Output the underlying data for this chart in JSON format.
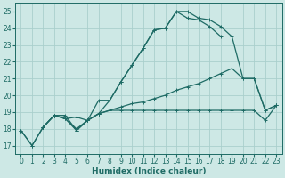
{
  "xlabel": "Humidex (Indice chaleur)",
  "xlim": [
    -0.5,
    23.5
  ],
  "ylim": [
    16.5,
    25.5
  ],
  "xticks": [
    0,
    1,
    2,
    3,
    4,
    5,
    6,
    7,
    8,
    9,
    10,
    11,
    12,
    13,
    14,
    15,
    16,
    17,
    18,
    19,
    20,
    21,
    22,
    23
  ],
  "yticks": [
    17,
    18,
    19,
    20,
    21,
    22,
    23,
    24,
    25
  ],
  "bg_color": "#cde8e5",
  "grid_color": "#aacfcc",
  "line_color": "#1e6b65",
  "line1_x": [
    0,
    1,
    2,
    3,
    4,
    5,
    6,
    7,
    8,
    9,
    10,
    11,
    12,
    13,
    14,
    15,
    16,
    17,
    18,
    19,
    20,
    21,
    22,
    23
  ],
  "line1_y": [
    17.9,
    17.0,
    18.1,
    18.8,
    18.8,
    17.9,
    18.5,
    18.9,
    19.1,
    19.1,
    19.1,
    19.1,
    19.1,
    19.1,
    19.1,
    19.1,
    19.1,
    19.1,
    19.1,
    19.1,
    19.1,
    19.1,
    18.5,
    19.4
  ],
  "line2_x": [
    0,
    1,
    2,
    3,
    4,
    5,
    6,
    7,
    8,
    9,
    10,
    11,
    12,
    13,
    14,
    15,
    16,
    17,
    18,
    19,
    20,
    21,
    22,
    23
  ],
  "line2_y": [
    17.9,
    17.0,
    18.1,
    18.8,
    18.6,
    17.9,
    18.5,
    18.9,
    19.7,
    20.8,
    21.8,
    22.8,
    23.9,
    24.0,
    25.0,
    25.0,
    24.6,
    24.5,
    24.1,
    23.5,
    21.0,
    21.0,
    19.1,
    19.4
  ],
  "line3_x": [
    2,
    3,
    4,
    5,
    6,
    7,
    8,
    9,
    10,
    11,
    12,
    13,
    14,
    15,
    16,
    17,
    18
  ],
  "line3_y": [
    18.1,
    18.8,
    18.6,
    18.7,
    18.5,
    19.7,
    19.7,
    20.8,
    21.8,
    22.8,
    23.9,
    24.0,
    25.0,
    24.6,
    24.5,
    24.1,
    23.5
  ],
  "line4_x": [
    2,
    3,
    4,
    5,
    6,
    7,
    8,
    9,
    10,
    11,
    12,
    13,
    14,
    15,
    16,
    17,
    18,
    19,
    20,
    21,
    22,
    23
  ],
  "line4_y": [
    18.1,
    18.8,
    18.6,
    18.0,
    18.5,
    18.9,
    19.1,
    19.3,
    19.5,
    19.6,
    19.8,
    20.0,
    20.3,
    20.5,
    20.7,
    21.0,
    21.3,
    21.6,
    21.0,
    21.0,
    19.1,
    19.4
  ]
}
